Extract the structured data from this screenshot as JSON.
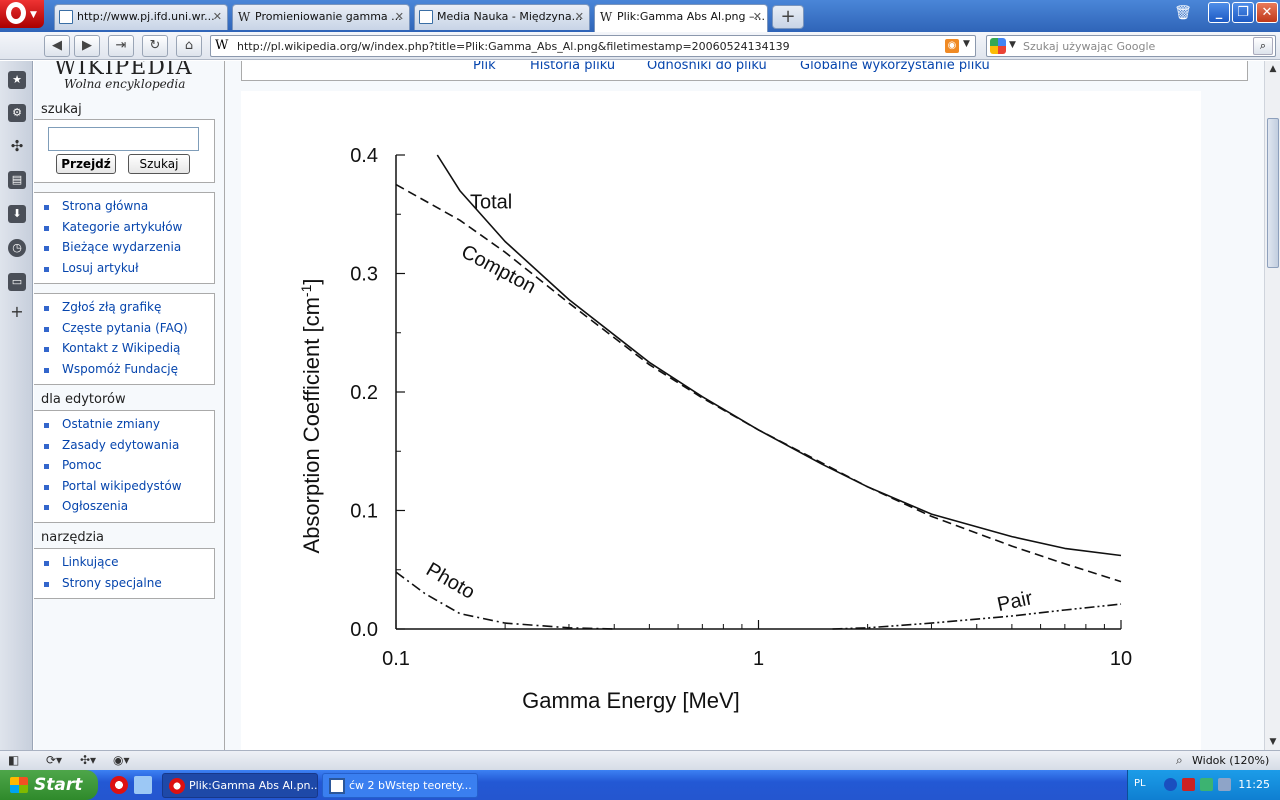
{
  "tabs": [
    {
      "title": "http://www.pj.ifd.uni.wr...",
      "icon": "page-icon"
    },
    {
      "title": "Promieniowanie gamma ...",
      "icon": "wikipedia-icon"
    },
    {
      "title": "Media Nauka - Międzyna...",
      "icon": "page-icon"
    },
    {
      "title": "Plik:Gamma Abs Al.png –...",
      "icon": "wikipedia-icon"
    }
  ],
  "tab_close_glyph": "✕",
  "address": {
    "url": "http://pl.wikipedia.org/w/index.php?title=Plik:Gamma_Abs_Al.png&filetimestamp=20060524134139"
  },
  "search": {
    "placeholder": "Szukaj używając Google"
  },
  "wiki": {
    "logo_title": "WIKIPEDIA",
    "logo_tagline": "Wolna encyklopedia",
    "search_heading": "szukaj",
    "go_button": "Przejdź",
    "search_button": "Szukaj",
    "nav_items": [
      "Strona główna",
      "Kategorie artykułów",
      "Bieżące wydarzenia",
      "Losuj artykuł"
    ],
    "help_items": [
      "Zgłoś złą grafikę",
      "Częste pytania (FAQ)",
      "Kontakt z Wikipedią",
      "Wspomóż Fundację"
    ],
    "editors_heading": "dla edytorów",
    "editors_items": [
      "Ostatnie zmiany",
      "Zasady edytowania",
      "Pomoc",
      "Portal wikipedystów",
      "Ogłoszenia"
    ],
    "tools_heading": "narzędzia",
    "tools_items": [
      "Linkujące",
      "Strony specjalne"
    ],
    "file_tabs": [
      "Plik",
      "Historia pliku",
      "Odnośniki do pliku",
      "Globalne wykorzystanie pliku"
    ]
  },
  "statusbar": {
    "zoom": "Widok (120%)"
  },
  "taskbar": {
    "start": "Start",
    "tasks": [
      "Plik:Gamma Abs Al.pn...",
      "ćw 2 bWstęp teorety..."
    ],
    "lang": "PL",
    "time": "11:25"
  },
  "colors": {
    "link": "#0645ad",
    "taskbar": "#2456cf",
    "start": "#3f9a3b"
  },
  "chart_data": {
    "type": "line",
    "xlabel": "Gamma Energy [MeV]",
    "ylabel_main": "Absorption Coefficient [cm",
    "ylabel_sup": "-1",
    "ylabel_close": "]",
    "x_scale": "log",
    "xlim": [
      0.1,
      10
    ],
    "ylim": [
      0,
      0.4
    ],
    "xticks": [
      "0.1",
      "1",
      "10"
    ],
    "yticks": [
      "0.0",
      "0.1",
      "0.2",
      "0.3",
      "0.4"
    ],
    "series": [
      {
        "name": "Total",
        "style": "solid",
        "x": [
          0.13,
          0.15,
          0.2,
          0.3,
          0.5,
          0.7,
          1,
          1.5,
          2,
          3,
          5,
          7,
          10
        ],
        "y": [
          0.4,
          0.37,
          0.327,
          0.278,
          0.225,
          0.196,
          0.168,
          0.139,
          0.12,
          0.097,
          0.078,
          0.068,
          0.062
        ]
      },
      {
        "name": "Compton",
        "style": "dashed",
        "x": [
          0.1,
          0.15,
          0.2,
          0.3,
          0.5,
          0.7,
          1,
          1.5,
          2,
          3,
          5,
          7,
          10
        ],
        "y": [
          0.375,
          0.345,
          0.318,
          0.275,
          0.223,
          0.195,
          0.168,
          0.14,
          0.12,
          0.095,
          0.07,
          0.055,
          0.04
        ]
      },
      {
        "name": "Photo",
        "style": "dashdot",
        "x": [
          0.1,
          0.12,
          0.15,
          0.2,
          0.3,
          0.4
        ],
        "y": [
          0.048,
          0.03,
          0.013,
          0.005,
          0.001,
          0
        ]
      },
      {
        "name": "Pair",
        "style": "dashdotdot",
        "x": [
          1.6,
          2,
          3,
          5,
          7,
          10
        ],
        "y": [
          0,
          0.001,
          0.005,
          0.011,
          0.016,
          0.021
        ]
      }
    ]
  }
}
